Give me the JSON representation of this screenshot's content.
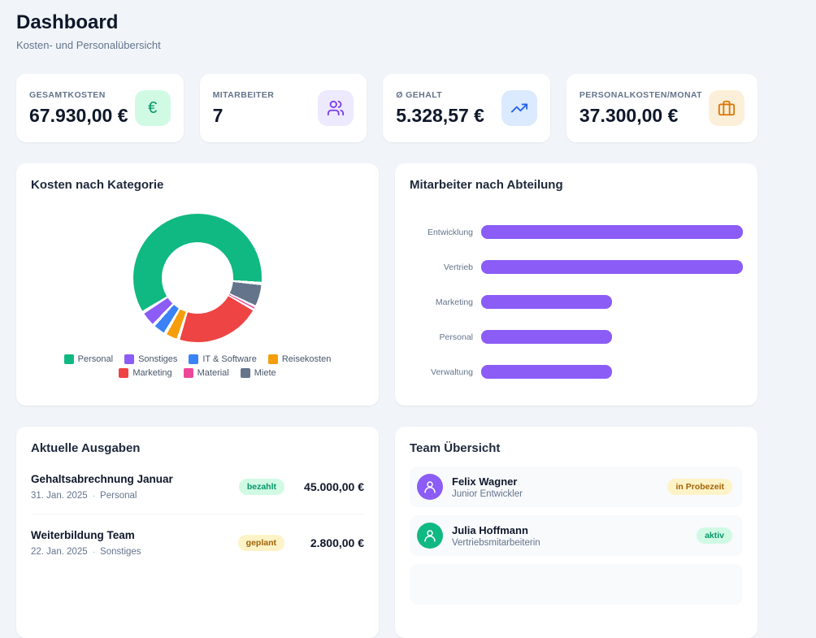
{
  "page": {
    "title": "Dashboard",
    "subtitle": "Kosten- und Personalübersicht"
  },
  "stats": [
    {
      "label": "GESAMTKOSTEN",
      "value": "67.930,00 €",
      "icon": "euro-icon",
      "glyph": "€",
      "accent": "#059669",
      "tile_bg": "#d1fae5"
    },
    {
      "label": "MITARBEITER",
      "value": "7",
      "icon": "users-icon",
      "accent": "#7c3aed",
      "tile_bg": "#ede9fe"
    },
    {
      "label": "Ø GEHALT",
      "value": "5.328,57 €",
      "icon": "trending-up-icon",
      "accent": "#2563eb",
      "tile_bg": "#dbeafe"
    },
    {
      "label": "PERSONALKOSTEN/MONAT",
      "value": "37.300,00 €",
      "icon": "briefcase-icon",
      "accent": "#d97706",
      "tile_bg": "#fcefd9"
    }
  ],
  "chart_data": [
    {
      "type": "pie",
      "subtype": "donut",
      "title": "Kosten nach Kategorie",
      "categories": [
        "Personal",
        "Sonstiges",
        "IT & Software",
        "Reisekosten",
        "Marketing",
        "Material",
        "Miete"
      ],
      "values": [
        41000,
        2800,
        2400,
        2400,
        14800,
        430,
        4100
      ],
      "values_estimated_from_pixels": true,
      "total": 67930,
      "unit": "EUR",
      "colors": [
        "#10b981",
        "#8b5cf6",
        "#3b82f6",
        "#f59e0b",
        "#ef4444",
        "#ec4899",
        "#64748b"
      ],
      "cutout_pct": 55,
      "rotation_deg": 95,
      "segment_gap_deg": 3,
      "legend_position": "bottom"
    },
    {
      "type": "bar",
      "orientation": "horizontal",
      "title": "Mitarbeiter nach Abteilung",
      "categories": [
        "Entwicklung",
        "Vertrieb",
        "Marketing",
        "Personal",
        "Verwaltung"
      ],
      "values": [
        2,
        2,
        1,
        1,
        1
      ],
      "xlim": [
        0,
        2
      ],
      "grid": false,
      "color": "#8b5cf6"
    }
  ],
  "expenses": {
    "title": "Aktuelle Ausgaben",
    "separator": "·",
    "items": [
      {
        "name": "Gehaltsabrechnung Januar",
        "date": "31. Jan. 2025",
        "category": "Personal",
        "status": "bezahlt",
        "status_type": "success",
        "amount": "45.000,00 €"
      },
      {
        "name": "Weiterbildung Team",
        "date": "22. Jan. 2025",
        "category": "Sonstiges",
        "status": "geplant",
        "status_type": "pending",
        "amount": "2.800,00 €"
      }
    ]
  },
  "team": {
    "title": "Team Übersicht",
    "members": [
      {
        "name": "Felix Wagner",
        "role": "Junior Entwickler",
        "status": "in Probezeit",
        "status_type": "pending",
        "avatar_color": "#8b5cf6",
        "avatar_icon": "user-icon"
      },
      {
        "name": "Julia Hoffmann",
        "role": "Vertriebsmitarbeiterin",
        "status": "aktiv",
        "status_type": "success",
        "avatar_color": "#10b981",
        "avatar_icon": "user-icon"
      }
    ]
  },
  "colors": {
    "page_bg": "#f1f5f9",
    "card_bg": "#ffffff",
    "heading": "#0f172a",
    "muted": "#64748b",
    "badge_success_bg": "#d1fae5",
    "badge_success_text": "#059669",
    "badge_pending_bg": "#fef3c7",
    "badge_pending_text": "#a16207"
  }
}
